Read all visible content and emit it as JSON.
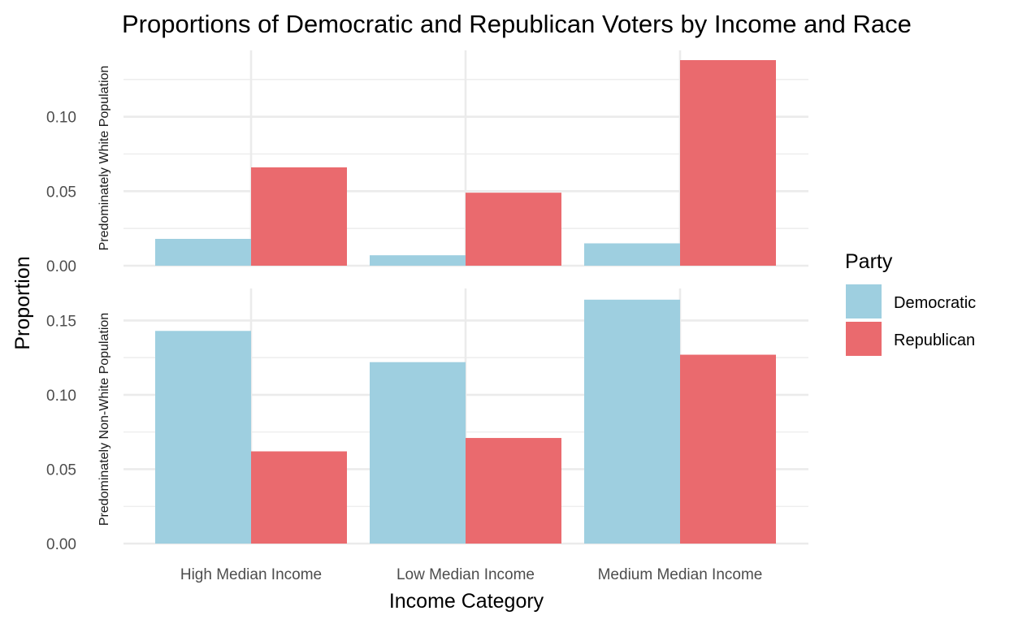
{
  "chart_data": {
    "type": "bar",
    "title": "Proportions of Democratic and Republican Voters by Income and Race",
    "xlabel": "Income Category",
    "ylabel": "Proportion",
    "categories": [
      "High Median Income",
      "Low Median Income",
      "Medium Median Income"
    ],
    "legend": {
      "title": "Party",
      "placement": "right",
      "entries": [
        "Democratic",
        "Republican"
      ]
    },
    "colors": {
      "Democratic": "#9ecfe0",
      "Republican": "#ea6a6e"
    },
    "grid": true,
    "facets": [
      {
        "label": "Predominately White Population",
        "ylim": [
          0,
          0.138
        ],
        "yticks": [
          0.0,
          0.05,
          0.1
        ],
        "ytick_labels": [
          "0.00",
          "0.05",
          "0.10"
        ],
        "series": [
          {
            "name": "Democratic",
            "values": [
              0.018,
              0.007,
              0.015
            ]
          },
          {
            "name": "Republican",
            "values": [
              0.066,
              0.049,
              0.138
            ]
          }
        ]
      },
      {
        "label": "Predominately Non-White Population",
        "ylim": [
          0,
          0.165
        ],
        "yticks": [
          0.0,
          0.05,
          0.1,
          0.15
        ],
        "ytick_labels": [
          "0.00",
          "0.05",
          "0.10",
          "0.15"
        ],
        "series": [
          {
            "name": "Democratic",
            "values": [
              0.143,
              0.122,
              0.164
            ]
          },
          {
            "name": "Republican",
            "values": [
              0.062,
              0.071,
              0.127
            ]
          }
        ]
      }
    ]
  }
}
